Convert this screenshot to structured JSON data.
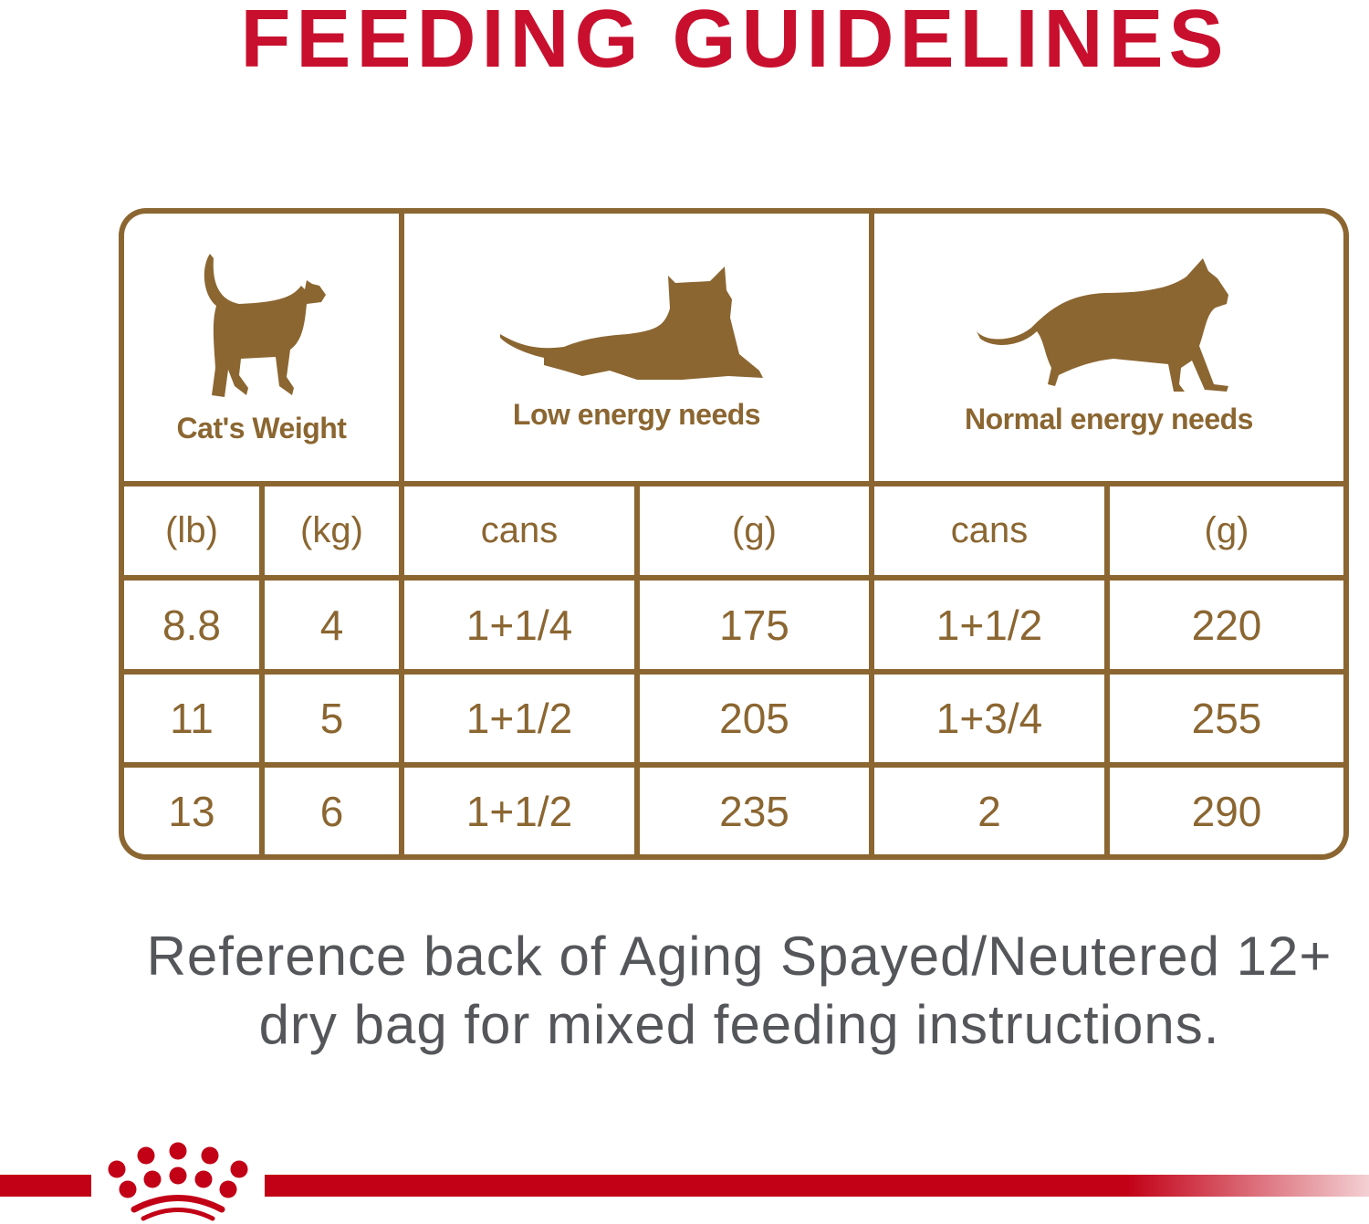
{
  "title": "FEEDING GUIDELINES",
  "colors": {
    "brand_red": "#c8102e",
    "table_brown": "#8b6631",
    "note_gray": "#54565a"
  },
  "table": {
    "groups": [
      {
        "label": "Cat's Weight",
        "icon": "standing-cat-icon"
      },
      {
        "label": "Low energy needs",
        "icon": "lying-cat-icon"
      },
      {
        "label": "Normal energy needs",
        "icon": "walking-cat-icon"
      }
    ],
    "subheaders": [
      "(lb)",
      "(kg)",
      "cans",
      "(g)",
      "cans",
      "(g)"
    ],
    "rows": [
      [
        "8.8",
        "4",
        "1+1/4",
        "175",
        "1+1/2",
        "220"
      ],
      [
        "11",
        "5",
        "1+1/2",
        "205",
        "1+3/4",
        "255"
      ],
      [
        "13",
        "6",
        "1+1/2",
        "235",
        "2",
        "290"
      ]
    ]
  },
  "note": {
    "line1": "Reference back of Aging Spayed/Neutered 12+",
    "line2": "dry bag for mixed feeding instructions."
  },
  "logo": {
    "icon": "royal-canin-crown-icon"
  }
}
